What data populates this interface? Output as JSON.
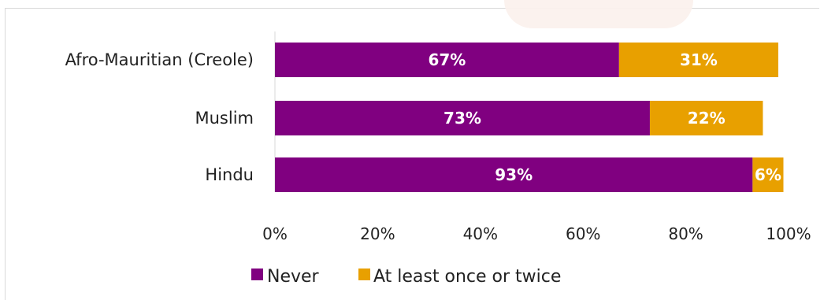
{
  "chart_data": {
    "type": "bar",
    "orientation": "horizontal",
    "stacked": true,
    "categories": [
      "Afro-Mauritian (Creole)",
      "Muslim",
      "Hindu"
    ],
    "series": [
      {
        "name": "Never",
        "values": [
          67,
          73,
          93
        ],
        "labels": [
          "67%",
          "73%",
          "93%"
        ],
        "color": "#800080"
      },
      {
        "name": "At least once or twice",
        "values": [
          31,
          22,
          6
        ],
        "labels": [
          "31%",
          "22%",
          "6%"
        ],
        "color": "#e8a000"
      }
    ],
    "x_ticks": [
      "0%",
      "20%",
      "40%",
      "60%",
      "80%",
      "100%"
    ],
    "xlim": [
      0,
      100
    ],
    "legend_position": "bottom",
    "grid": false
  }
}
